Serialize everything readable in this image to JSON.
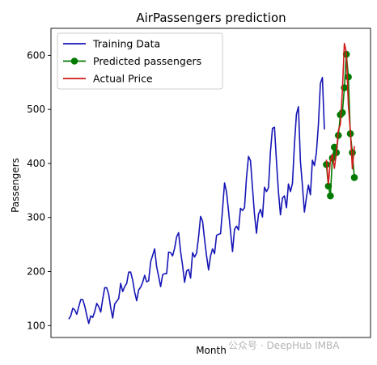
{
  "chart_data": {
    "type": "line",
    "title": "AirPassengers prediction",
    "xlabel": "Month",
    "ylabel": "Passengers",
    "ylim": [
      78,
      650
    ],
    "yticks": [
      100,
      200,
      300,
      400,
      500,
      600
    ],
    "grid": false,
    "legend_position": "top-left",
    "series": [
      {
        "name": "Training Data",
        "color": "#1515b5",
        "marker": "none",
        "values": [
          112,
          118,
          132,
          129,
          121,
          135,
          148,
          148,
          136,
          119,
          104,
          118,
          115,
          126,
          141,
          135,
          125,
          149,
          170,
          170,
          158,
          133,
          114,
          140,
          145,
          150,
          178,
          163,
          172,
          178,
          199,
          199,
          184,
          162,
          146,
          166,
          171,
          180,
          193,
          181,
          183,
          218,
          230,
          242,
          209,
          191,
          172,
          194,
          196,
          196,
          236,
          235,
          229,
          243,
          264,
          272,
          237,
          211,
          180,
          201,
          204,
          188,
          235,
          227,
          234,
          264,
          302,
          293,
          259,
          229,
          203,
          229,
          242,
          233,
          267,
          269,
          270,
          315,
          364,
          347,
          312,
          274,
          237,
          278,
          284,
          277,
          317,
          313,
          318,
          374,
          413,
          405,
          355,
          306,
          271,
          306,
          315,
          301,
          356,
          348,
          355,
          422,
          465,
          467,
          404,
          347,
          305,
          336,
          340,
          318,
          362,
          348,
          363,
          435,
          491,
          505,
          404,
          359,
          310,
          337,
          360,
          342,
          406,
          396,
          420,
          472,
          548,
          559,
          463
        ]
      },
      {
        "name": "Predicted passengers",
        "color": "#007a00",
        "marker": "circle",
        "values": [
          398,
          358,
          340,
          410,
          430,
          420,
          452,
          490,
          494,
          540,
          602,
          560,
          455,
          420,
          374
        ]
      },
      {
        "name": "Actual Price",
        "color": "#d11a1a",
        "marker": "none",
        "values": [
          407,
          362,
          405,
          417,
          391,
          419,
          461,
          472,
          535,
          622,
          606,
          508,
          461,
          390,
          432
        ]
      }
    ],
    "x_index": {
      "training_start": 0,
      "forecast_start": 129
    }
  },
  "watermark": "公众号 · DeepHub IMBA"
}
